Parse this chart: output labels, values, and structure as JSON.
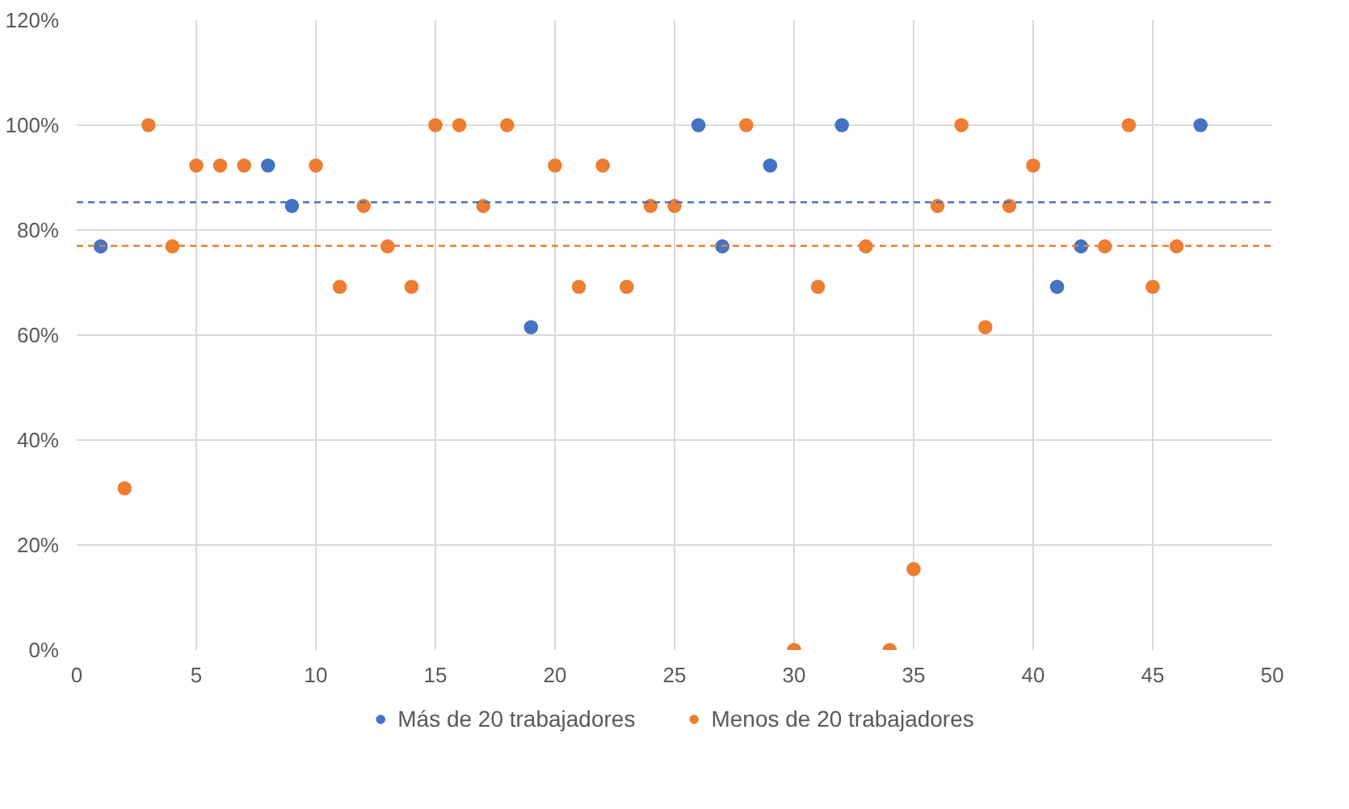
{
  "chart_data": {
    "type": "scatter",
    "xlim": [
      0,
      50
    ],
    "xticks": [
      0,
      5,
      10,
      15,
      20,
      25,
      30,
      35,
      40,
      45,
      50
    ],
    "ylim": [
      0,
      120
    ],
    "yticks": [
      {
        "value": 0,
        "label": "0%"
      },
      {
        "value": 20,
        "label": "20%"
      },
      {
        "value": 40,
        "label": "40%"
      },
      {
        "value": 60,
        "label": "60%"
      },
      {
        "value": 80,
        "label": "80%"
      },
      {
        "value": 100,
        "label": "100%"
      },
      {
        "value": 120,
        "label": "120%"
      }
    ],
    "grid": true,
    "legend": "bottom",
    "marker": "circle",
    "series": [
      {
        "name": "Más de 20 trabajadores",
        "color": "#4472c4",
        "x": [
          1,
          8,
          9,
          19,
          26,
          27,
          29,
          32,
          41,
          42,
          47
        ],
        "values": [
          76.9,
          92.3,
          84.6,
          61.5,
          100,
          76.9,
          92.3,
          100,
          69.2,
          76.9,
          100
        ]
      },
      {
        "name": "Menos de 20 trabajadores",
        "color": "#ed7d31",
        "x": [
          2,
          3,
          4,
          5,
          6,
          7,
          10,
          11,
          12,
          13,
          14,
          15,
          16,
          17,
          18,
          20,
          21,
          22,
          23,
          24,
          25,
          28,
          30,
          31,
          33,
          34,
          35,
          36,
          37,
          38,
          39,
          40,
          43,
          44,
          45,
          46
        ],
        "values": [
          30.8,
          100,
          76.9,
          92.3,
          92.3,
          92.3,
          92.3,
          69.2,
          84.6,
          76.9,
          69.2,
          100,
          100,
          84.6,
          100,
          92.3,
          69.2,
          92.3,
          69.2,
          84.6,
          84.6,
          100,
          0,
          69.2,
          76.9,
          0,
          15.4,
          84.6,
          100,
          61.5,
          84.6,
          92.3,
          76.9,
          100,
          69.2,
          76.9
        ]
      }
    ],
    "ref_lines": [
      {
        "axis": "y",
        "value": 85.3,
        "color": "#4472c4",
        "line_style": "dashed"
      },
      {
        "axis": "y",
        "value": 77.0,
        "color": "#ed7d31",
        "line_style": "dashed"
      }
    ]
  }
}
